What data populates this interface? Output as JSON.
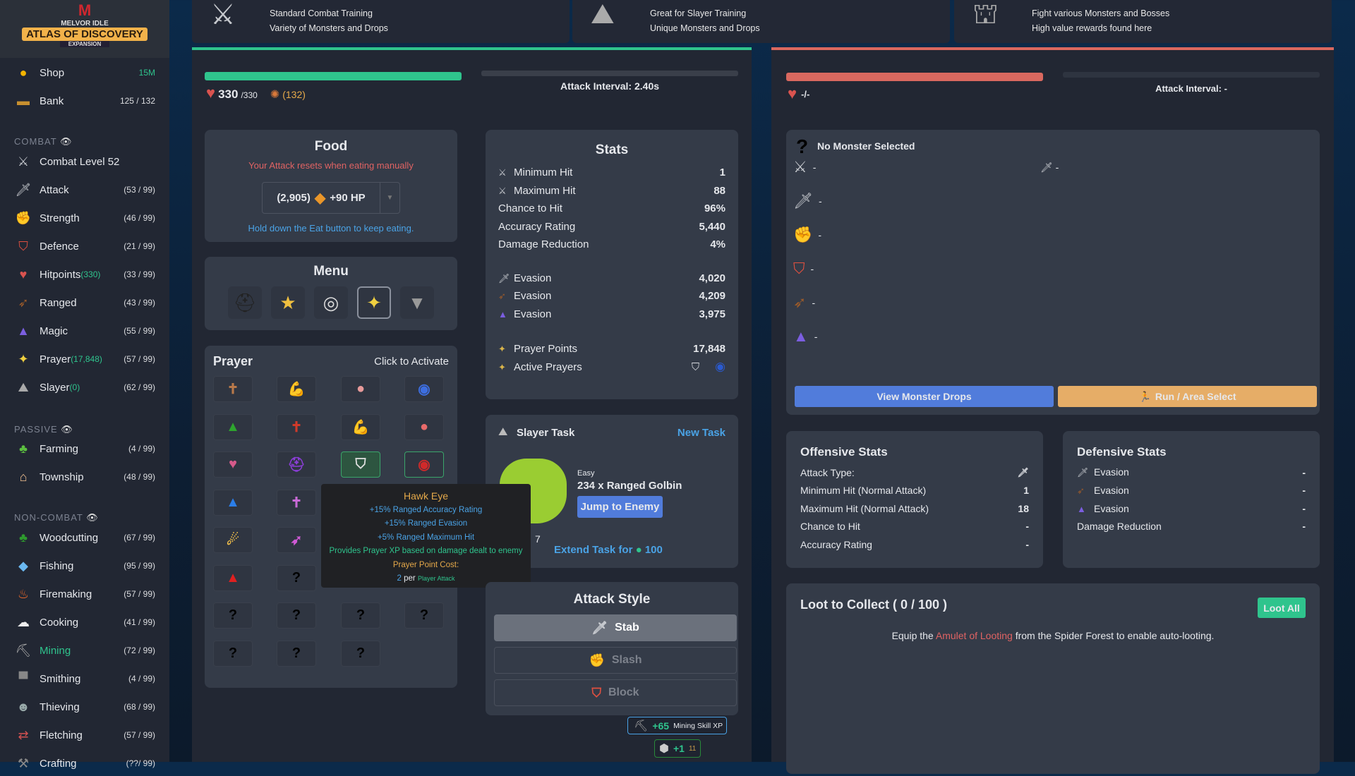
{
  "colors": {
    "accent_green": "#2fc48d",
    "hp_red": "#d9685f",
    "blue_button": "#517cdb",
    "orange_button": "#e6ad67",
    "link_blue": "#4aa3e6",
    "warn_red": "#e06363"
  },
  "sidebar": {
    "logo": {
      "line1": "MELVOR IDLE",
      "line2": "ATLAS OF DISCOVERY",
      "line3": "EXPANSION"
    },
    "shop": {
      "label": "Shop",
      "value": "15M",
      "icon": "coin-icon"
    },
    "bank": {
      "label": "Bank",
      "value": "125 / 132",
      "icon": "chest-icon"
    },
    "sections": [
      {
        "title": "COMBAT",
        "items": [
          {
            "label": "Combat Level 52",
            "sub": "",
            "level": "",
            "icon": "crossed-swords-icon"
          },
          {
            "label": "Attack",
            "sub": "",
            "level": "(53 / 99)",
            "icon": "sword-icon"
          },
          {
            "label": "Strength",
            "sub": "",
            "level": "(46 / 99)",
            "icon": "bicep-icon"
          },
          {
            "label": "Defence",
            "sub": "",
            "level": "(21 / 99)",
            "icon": "shield-icon"
          },
          {
            "label": "Hitpoints",
            "sub": "(330)",
            "level": "(33 / 99)",
            "icon": "heart-icon"
          },
          {
            "label": "Ranged",
            "sub": "",
            "level": "(43 / 99)",
            "icon": "bow-icon"
          },
          {
            "label": "Magic",
            "sub": "",
            "level": "(55 / 99)",
            "icon": "wizard-hat-icon"
          },
          {
            "label": "Prayer",
            "sub": "(17,848)",
            "level": "(57 / 99)",
            "icon": "sparkle-icon"
          },
          {
            "label": "Slayer",
            "sub": "(0)",
            "level": "(62 / 99)",
            "icon": "slayer-icon"
          }
        ]
      },
      {
        "title": "PASSIVE",
        "items": [
          {
            "label": "Farming",
            "sub": "",
            "level": "(4 / 99)",
            "icon": "sprout-icon"
          },
          {
            "label": "Township",
            "sub": "",
            "level": "(48 / 99)",
            "icon": "house-icon"
          }
        ]
      },
      {
        "title": "NON-COMBAT",
        "items": [
          {
            "label": "Woodcutting",
            "sub": "",
            "level": "(67 / 99)",
            "icon": "tree-icon"
          },
          {
            "label": "Fishing",
            "sub": "",
            "level": "(95 / 99)",
            "icon": "fish-icon"
          },
          {
            "label": "Firemaking",
            "sub": "",
            "level": "(57 / 99)",
            "icon": "fire-icon"
          },
          {
            "label": "Cooking",
            "sub": "",
            "level": "(41 / 99)",
            "icon": "chef-hat-icon"
          },
          {
            "label": "Mining",
            "sub": "",
            "level": "(72 / 99)",
            "icon": "pickaxe-icon",
            "active": true
          },
          {
            "label": "Smithing",
            "sub": "",
            "level": "(4 / 99)",
            "icon": "anvil-icon"
          },
          {
            "label": "Thieving",
            "sub": "",
            "level": "(68 / 99)",
            "icon": "thief-icon"
          },
          {
            "label": "Fletching",
            "sub": "",
            "level": "(57 / 99)",
            "icon": "arrows-icon"
          },
          {
            "label": "Crafting",
            "sub": "",
            "level": "(??/ 99)",
            "icon": "hammer-icon"
          }
        ]
      }
    ]
  },
  "areas": [
    {
      "lines": [
        "Standard Combat Training",
        "Variety of Monsters and Drops"
      ],
      "icon": "crossed-swords-icon"
    },
    {
      "lines": [
        "Great for Slayer Training",
        "Unique Monsters and Drops"
      ],
      "icon": "slayer-icon"
    },
    {
      "lines": [
        "Fight various Monsters and Bosses",
        "High value rewards found here"
      ],
      "icon": "dungeon-door-icon"
    }
  ],
  "player": {
    "hp": "330",
    "hp_max": "/330",
    "hp_fraction": 1.0,
    "summon": "(132)",
    "attack_interval": "Attack Interval: 2.40s",
    "attack_progress": 0
  },
  "food": {
    "title": "Food",
    "warning": "Your Attack resets when eating manually",
    "count": "(2,905)",
    "heal": "+90 HP",
    "hint": "Hold down the Eat button to keep eating."
  },
  "menu": {
    "title": "Menu",
    "icons": [
      "helmet-icon",
      "spellbook-icon",
      "wind-icon",
      "prayer-sparkle-icon",
      "wolf-icon"
    ]
  },
  "prayer": {
    "title": "Prayer",
    "hint": "Click to Activate",
    "cells": [
      {
        "g": "✝",
        "c": "#b9794a"
      },
      {
        "g": "💪",
        "c": "#f3c58f"
      },
      {
        "g": "●",
        "c": "#e79a9a"
      },
      {
        "g": "◉",
        "c": "#3d6ee0"
      },
      {
        "g": "▲",
        "c": "#2ea42e"
      },
      {
        "g": "✝",
        "c": "#d03a2a"
      },
      {
        "g": "💪",
        "c": "#f3a07a"
      },
      {
        "g": "●",
        "c": "#e86a6a"
      },
      {
        "g": "♥",
        "c": "#d65a8a"
      },
      {
        "g": "⛑",
        "c": "#8a3ed6"
      },
      {
        "g": "⛉",
        "c": "#e0e0e0",
        "state": "active"
      },
      {
        "g": "◉",
        "c": "#d02a2a",
        "state": "selected"
      },
      {
        "g": "▲",
        "c": "#2b7ee8"
      },
      {
        "g": "✝",
        "c": "#c86ad6"
      },
      {
        "g": "",
        "c": ""
      },
      {
        "g": "",
        "c": ""
      },
      {
        "g": "☄",
        "c": "#f3c04a"
      },
      {
        "g": "➶",
        "c": "#d05ad6"
      },
      {
        "g": "",
        "c": ""
      },
      {
        "g": "",
        "c": ""
      },
      {
        "g": "▲",
        "c": "#e02020"
      },
      {
        "g": "?",
        "c": "#000"
      },
      {
        "g": "",
        "c": ""
      },
      {
        "g": "",
        "c": ""
      },
      {
        "g": "?",
        "c": "#000"
      },
      {
        "g": "?",
        "c": "#000"
      },
      {
        "g": "?",
        "c": "#000"
      },
      {
        "g": "?",
        "c": "#000"
      },
      {
        "g": "?",
        "c": "#000"
      },
      {
        "g": "?",
        "c": "#000"
      },
      {
        "g": "?",
        "c": "#000"
      }
    ]
  },
  "tooltip": {
    "title": "Hawk Eye",
    "lines": [
      "+15% Ranged Accuracy Rating",
      "+15% Ranged Evasion",
      "+5% Ranged Maximum Hit"
    ],
    "xp": "Provides Prayer XP based on damage dealt to enemy",
    "cost_label": "Prayer Point Cost:",
    "cost_value": "2",
    "cost_per": "per",
    "cost_unit": "Player Attack"
  },
  "stats": {
    "title": "Stats",
    "rows": [
      {
        "label": "Minimum Hit",
        "value": "1",
        "icon": "crossed-swords-icon"
      },
      {
        "label": "Maximum Hit",
        "value": "88",
        "icon": "crossed-swords-icon"
      },
      {
        "label": "Chance to Hit",
        "value": "96%"
      },
      {
        "label": "Accuracy Rating",
        "value": "5,440"
      },
      {
        "label": "Damage Reduction",
        "value": "4%"
      }
    ],
    "evasion": [
      {
        "label": "Evasion",
        "value": "4,020",
        "icon": "sword-icon"
      },
      {
        "label": "Evasion",
        "value": "4,209",
        "icon": "bow-icon"
      },
      {
        "label": "Evasion",
        "value": "3,975",
        "icon": "wizard-hat-icon"
      }
    ],
    "prayer_points_label": "Prayer Points",
    "prayer_points": "17,848",
    "active_prayers_label": "Active Prayers"
  },
  "slayer": {
    "title": "Slayer Task",
    "new_task": "New Task",
    "difficulty": "Easy",
    "task": "234 x Ranged Golbin",
    "jump": "Jump to Enemy",
    "extend": "Extend Task for",
    "extend_cost": "100",
    "partial": "7"
  },
  "attack_style": {
    "title": "Attack Style",
    "options": [
      {
        "label": "Stab",
        "selected": true,
        "icon": "sword-icon"
      },
      {
        "label": "Slash",
        "icon": "bicep-icon"
      },
      {
        "label": "Block",
        "icon": "shield-icon"
      }
    ]
  },
  "xp_popups": [
    {
      "amount": "+65",
      "label": "Mining Skill XP"
    },
    {
      "amount": "+1",
      "label": "11"
    }
  ],
  "enemy": {
    "hp": "-/-",
    "attack_interval": "Attack Interval: -",
    "name": "No Monster Selected",
    "attack_type_value": "-",
    "stats": [
      "-",
      "-",
      "-",
      "-",
      "-",
      "-"
    ],
    "view_drops": "View Monster Drops",
    "run": "Run / Area Select"
  },
  "offensive": {
    "title": "Offensive Stats",
    "rows": [
      {
        "label": "Attack Type:",
        "value": ""
      },
      {
        "label": "Minimum Hit (Normal Attack)",
        "value": "1"
      },
      {
        "label": "Maximum Hit (Normal Attack)",
        "value": "18"
      },
      {
        "label": "Chance to Hit",
        "value": "-"
      },
      {
        "label": "Accuracy Rating",
        "value": "-"
      }
    ]
  },
  "defensive": {
    "title": "Defensive Stats",
    "rows": [
      {
        "label": "Evasion",
        "value": "-",
        "icon": "sword-icon"
      },
      {
        "label": "Evasion",
        "value": "-",
        "icon": "bow-icon"
      },
      {
        "label": "Evasion",
        "value": "-",
        "icon": "wizard-hat-icon"
      },
      {
        "label": "Damage Reduction",
        "value": "-"
      }
    ]
  },
  "loot": {
    "title": "Loot to Collect ( 0 / 100 )",
    "loot_all": "Loot All",
    "msg_pre": "Equip the",
    "msg_link": "Amulet of Looting",
    "msg_post": "from the Spider Forest to enable auto-looting."
  }
}
